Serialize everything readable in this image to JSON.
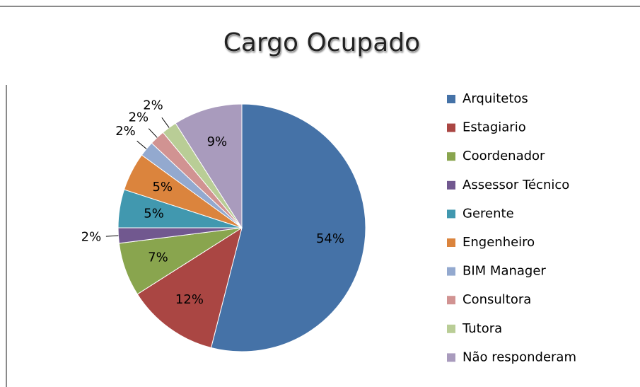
{
  "chart_data": {
    "type": "pie",
    "title": "Cargo Ocupado",
    "categories": [
      "Arquitetos",
      "Estagiario",
      "Coordenador",
      "Assessor Técnico",
      "Gerente",
      "Engenheiro",
      "BIM Manager",
      "Consultora",
      "Tutora",
      "Não responderam"
    ],
    "values": [
      54,
      12,
      7,
      2,
      5,
      5,
      2,
      2,
      2,
      9
    ],
    "value_labels": [
      "54%",
      "12%",
      "7%",
      "2%",
      "5%",
      "5%",
      "2%",
      "2%",
      "2%",
      "9%"
    ],
    "colors": [
      "#4572A7",
      "#AA4643",
      "#89A54E",
      "#71588F",
      "#4198AF",
      "#DB843D",
      "#93A9CF",
      "#D19392",
      "#B9CD96",
      "#A99BBD"
    ],
    "legend": "right"
  }
}
